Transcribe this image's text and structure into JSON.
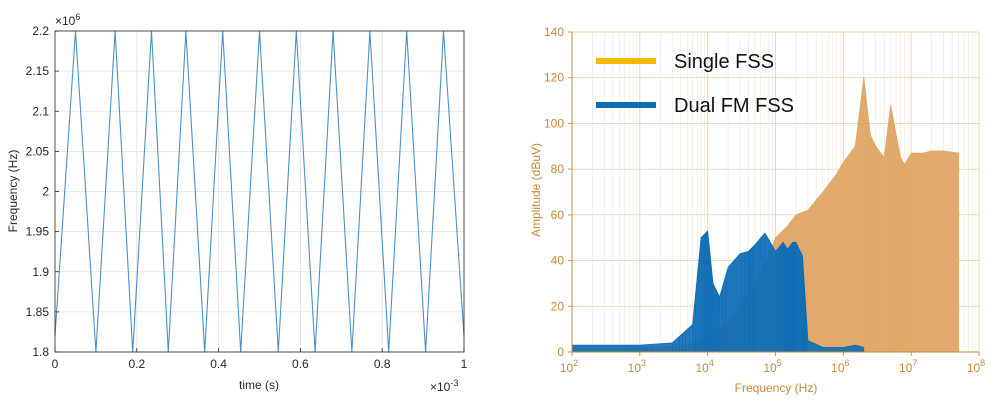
{
  "chart_data": [
    {
      "type": "line",
      "xlabel": "time (s)",
      "ylabel": "Frequency (Hz)",
      "x_exponent_base": "×10",
      "x_exponent_power": "-3",
      "y_exponent_base": "×10",
      "y_exponent_power": "6",
      "xlim": [
        0,
        1
      ],
      "ylim": [
        1.8,
        2.2
      ],
      "xticks": [
        "0",
        "0.2",
        "0.4",
        "0.6",
        "0.8",
        "1"
      ],
      "yticks": [
        "1.8",
        "1.85",
        "1.9",
        "1.95",
        "2",
        "2.05",
        "2.1",
        "2.15",
        "2.2"
      ],
      "grid": true,
      "color": "#4a90c9",
      "series": [
        {
          "x": [
            0,
            0.05,
            0.1,
            0.147,
            0.19,
            0.236,
            0.277,
            0.32,
            0.366,
            0.41,
            0.454,
            0.5,
            0.546,
            0.59,
            0.636,
            0.68,
            0.726,
            0.77,
            0.816,
            0.86,
            0.906,
            0.95,
            1.0
          ],
          "y": [
            1.82,
            2.2,
            1.8,
            2.2,
            1.8,
            2.2,
            1.8,
            2.2,
            1.8,
            2.2,
            1.8,
            2.2,
            1.8,
            2.2,
            1.8,
            2.2,
            1.8,
            2.2,
            1.8,
            2.2,
            1.8,
            2.2,
            1.82
          ]
        }
      ]
    },
    {
      "type": "area",
      "xlabel": "Frequency (Hz)",
      "ylabel": "Amplitude (dBuV)",
      "x_scale": "log",
      "xlim": [
        100,
        100000000
      ],
      "ylim": [
        0,
        140
      ],
      "xticks": [
        {
          "base": "10",
          "exp": "2"
        },
        {
          "base": "10",
          "exp": "3"
        },
        {
          "base": "10",
          "exp": "4"
        },
        {
          "base": "10",
          "exp": "5"
        },
        {
          "base": "10",
          "exp": "6"
        },
        {
          "base": "10",
          "exp": "7"
        },
        {
          "base": "10",
          "exp": "8"
        }
      ],
      "yticks": [
        "0",
        "20",
        "40",
        "60",
        "80",
        "100",
        "120",
        "140"
      ],
      "grid": true,
      "legend_position": "top-left",
      "series": [
        {
          "name": "Single FSS",
          "color": "#e0a868",
          "x": [
            100,
            1000,
            5000,
            8000,
            10000,
            15000,
            20000,
            30000,
            50000,
            80000,
            100000,
            150000,
            200000,
            300000,
            500000,
            800000,
            1000000,
            1500000,
            2000000,
            2500000,
            3000000,
            4000000,
            5000000,
            6000000,
            7000000,
            8000000,
            10000000,
            15000000,
            20000000,
            30000000,
            50000000
          ],
          "y": [
            2,
            2,
            3,
            6,
            8,
            10,
            12,
            20,
            30,
            42,
            50,
            55,
            60,
            62,
            70,
            78,
            83,
            90,
            120,
            95,
            90,
            85,
            108,
            95,
            85,
            82,
            87,
            87,
            88,
            88,
            87
          ]
        },
        {
          "name": "Dual FM FSS",
          "color": "#0e6db5",
          "x": [
            100,
            1000,
            3000,
            6000,
            8000,
            10000,
            12000,
            15000,
            20000,
            30000,
            40000,
            50000,
            70000,
            100000,
            130000,
            150000,
            180000,
            200000,
            250000,
            300000,
            500000,
            1000000,
            1500000,
            2000000
          ],
          "y": [
            3,
            3,
            4,
            12,
            50,
            53,
            30,
            24,
            37,
            43,
            44,
            47,
            52,
            44,
            48,
            45,
            48,
            48,
            42,
            5,
            2,
            2,
            3,
            2
          ]
        }
      ]
    }
  ]
}
